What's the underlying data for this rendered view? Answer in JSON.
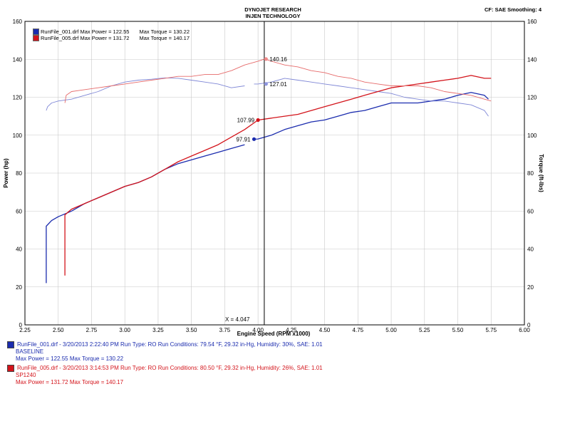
{
  "header": {
    "title_line1": "DYNOJET RESEARCH",
    "title_line2": "INJEN TECHNOLOGY",
    "cf_label": "CF: SAE  Smoothing: 4"
  },
  "legend": [
    {
      "file": "RunFile_001.drf",
      "max_power": "Max Power = 122.55",
      "max_torque": "Max Torque = 130.22",
      "color": "#1b2cae"
    },
    {
      "file": "RunFile_005.drf",
      "max_power": "Max Power = 131.72",
      "max_torque": "Max Torque = 140.17",
      "color": "#d3141b"
    }
  ],
  "cursor_label": "X = 4.047",
  "run_info": [
    {
      "line1": "RunFile_001.drf - 3/20/2013 2:22:40 PM  Run Type: RO  Run Conditions: 79.54 °F, 29.32 in-Hg,  Humidity: 30%, SAE: 1.01",
      "line2": "BASELINE",
      "line3": "Max Power = 122.55  Max Torque = 130.22",
      "color": "#1b2cae"
    },
    {
      "line1": "RunFile_005.drf - 3/20/2013 3:14:53 PM  Run Type: RO  Run Conditions: 80.50 °F, 29.32 in-Hg,  Humidity: 26%, SAE: 1.01",
      "line2": "SP1240",
      "line3": "Max Power = 131.72  Max Torque = 140.17",
      "color": "#d3141b"
    }
  ],
  "chart_data": {
    "type": "line",
    "xlabel": "Engine Speed (RPM x1000)",
    "ylabel": "Power (hp)",
    "y2label": "Torque (ft-lbs)",
    "xlim": [
      2.25,
      6.0
    ],
    "ylim": [
      0,
      160
    ],
    "y2lim": [
      0,
      160
    ],
    "xticks": [
      "2.25",
      "2.50",
      "2.75",
      "3.00",
      "3.25",
      "3.50",
      "3.75",
      "4.00",
      "4.25",
      "4.50",
      "4.75",
      "5.00",
      "5.25",
      "5.50",
      "5.75",
      "6.00"
    ],
    "yticks": [
      "0",
      "20",
      "40",
      "60",
      "80",
      "100",
      "120",
      "140",
      "160"
    ],
    "grid": true,
    "cursor_x": 4.047,
    "series": [
      {
        "name": "RunFile_001.drf Power",
        "axis": "left",
        "color": "#1b2cae",
        "width": 1.3,
        "points": [
          [
            2.41,
            22
          ],
          [
            2.41,
            52
          ],
          [
            2.45,
            55
          ],
          [
            2.5,
            57
          ],
          [
            2.6,
            60
          ],
          [
            2.7,
            64
          ],
          [
            2.8,
            67
          ],
          [
            2.9,
            70
          ],
          [
            3.0,
            73
          ],
          [
            3.1,
            75
          ],
          [
            3.2,
            78
          ],
          [
            3.3,
            82
          ],
          [
            3.4,
            85
          ],
          [
            3.5,
            87
          ],
          [
            3.6,
            89
          ],
          [
            3.7,
            91
          ],
          [
            3.8,
            93
          ],
          [
            3.9,
            95
          ]
        ]
      },
      {
        "name": "RunFile_001.drf Power",
        "axis": "left",
        "color": "#1b2cae",
        "width": 1.3,
        "points": [
          [
            3.97,
            97.91
          ],
          [
            4.0,
            98
          ],
          [
            4.1,
            100
          ],
          [
            4.2,
            103
          ],
          [
            4.3,
            105
          ],
          [
            4.4,
            107
          ],
          [
            4.5,
            108
          ],
          [
            4.6,
            110
          ],
          [
            4.7,
            112
          ],
          [
            4.8,
            113
          ],
          [
            4.9,
            115
          ],
          [
            5.0,
            117
          ],
          [
            5.1,
            117
          ],
          [
            5.2,
            117
          ],
          [
            5.3,
            118
          ],
          [
            5.4,
            119
          ],
          [
            5.5,
            121
          ],
          [
            5.6,
            122.5
          ],
          [
            5.7,
            121
          ],
          [
            5.73,
            119
          ]
        ]
      },
      {
        "name": "RunFile_001.drf Torque",
        "axis": "right",
        "color": "#7f87d6",
        "width": 0.9,
        "points": [
          [
            2.41,
            113
          ],
          [
            2.42,
            115
          ],
          [
            2.45,
            117
          ],
          [
            2.5,
            118
          ],
          [
            2.6,
            119
          ],
          [
            2.7,
            121
          ],
          [
            2.8,
            123
          ],
          [
            2.9,
            126
          ],
          [
            3.0,
            128
          ],
          [
            3.1,
            129
          ],
          [
            3.2,
            129.5
          ],
          [
            3.3,
            130.2
          ],
          [
            3.4,
            130
          ],
          [
            3.5,
            129
          ],
          [
            3.6,
            128
          ],
          [
            3.7,
            127
          ],
          [
            3.8,
            125
          ],
          [
            3.9,
            126
          ]
        ]
      },
      {
        "name": "RunFile_001.drf Torque",
        "axis": "right",
        "color": "#7f87d6",
        "width": 0.9,
        "points": [
          [
            3.97,
            127
          ],
          [
            4.0,
            127
          ],
          [
            4.1,
            128
          ],
          [
            4.2,
            130
          ],
          [
            4.3,
            129
          ],
          [
            4.4,
            128
          ],
          [
            4.5,
            127
          ],
          [
            4.6,
            126
          ],
          [
            4.7,
            125
          ],
          [
            4.8,
            124
          ],
          [
            4.9,
            123
          ],
          [
            5.0,
            122
          ],
          [
            5.1,
            120
          ],
          [
            5.2,
            119
          ],
          [
            5.3,
            118
          ],
          [
            5.4,
            118
          ],
          [
            5.5,
            117
          ],
          [
            5.6,
            116
          ],
          [
            5.7,
            113
          ],
          [
            5.73,
            110
          ]
        ]
      },
      {
        "name": "RunFile_005.drf Power",
        "axis": "left",
        "color": "#d3141b",
        "width": 1.3,
        "points": [
          [
            2.55,
            26
          ],
          [
            2.55,
            58
          ],
          [
            2.6,
            61
          ],
          [
            2.7,
            64
          ],
          [
            2.8,
            67
          ],
          [
            2.9,
            70
          ],
          [
            3.0,
            73
          ],
          [
            3.1,
            75
          ],
          [
            3.2,
            78
          ],
          [
            3.3,
            82
          ],
          [
            3.4,
            86
          ],
          [
            3.5,
            89
          ],
          [
            3.6,
            92
          ],
          [
            3.7,
            95
          ],
          [
            3.8,
            99
          ],
          [
            3.9,
            103
          ],
          [
            4.0,
            107.99
          ],
          [
            4.1,
            109
          ],
          [
            4.2,
            110
          ],
          [
            4.3,
            111
          ],
          [
            4.4,
            113
          ],
          [
            4.5,
            115
          ],
          [
            4.6,
            117
          ],
          [
            4.7,
            119
          ],
          [
            4.8,
            121
          ],
          [
            4.9,
            123
          ],
          [
            5.0,
            125
          ],
          [
            5.1,
            126
          ],
          [
            5.2,
            127
          ],
          [
            5.3,
            128
          ],
          [
            5.4,
            129
          ],
          [
            5.5,
            130
          ],
          [
            5.6,
            131.5
          ],
          [
            5.7,
            130
          ],
          [
            5.75,
            130
          ]
        ]
      },
      {
        "name": "RunFile_005.drf Torque",
        "axis": "right",
        "color": "#e66a6a",
        "width": 0.9,
        "points": [
          [
            2.55,
            117
          ],
          [
            2.56,
            121
          ],
          [
            2.6,
            123
          ],
          [
            2.7,
            124
          ],
          [
            2.8,
            125
          ],
          [
            2.9,
            126
          ],
          [
            3.0,
            127
          ],
          [
            3.1,
            128
          ],
          [
            3.2,
            129
          ],
          [
            3.3,
            130
          ],
          [
            3.4,
            131
          ],
          [
            3.5,
            131
          ],
          [
            3.6,
            132
          ],
          [
            3.7,
            132
          ],
          [
            3.8,
            134
          ],
          [
            3.9,
            137
          ],
          [
            4.0,
            139
          ],
          [
            4.05,
            140.17
          ],
          [
            4.1,
            139
          ],
          [
            4.2,
            137
          ],
          [
            4.3,
            136
          ],
          [
            4.4,
            134
          ],
          [
            4.5,
            133
          ],
          [
            4.6,
            131
          ],
          [
            4.7,
            130
          ],
          [
            4.8,
            128
          ],
          [
            4.9,
            127
          ],
          [
            5.0,
            126
          ],
          [
            5.1,
            126
          ],
          [
            5.2,
            126
          ],
          [
            5.3,
            125
          ],
          [
            5.4,
            123
          ],
          [
            5.5,
            122
          ],
          [
            5.6,
            121
          ],
          [
            5.7,
            119
          ],
          [
            5.75,
            118
          ]
        ]
      }
    ],
    "markers": [
      {
        "x": 4.0,
        "y": 107.99,
        "label": "107.99",
        "color": "#d3141b",
        "side": "left"
      },
      {
        "x": 3.97,
        "y": 97.91,
        "label": "97.91",
        "color": "#1b2cae",
        "side": "left"
      },
      {
        "x": 4.06,
        "y": 140.16,
        "label": "140.16",
        "color": "#f08a8a",
        "side": "right"
      },
      {
        "x": 4.06,
        "y": 127.01,
        "label": "127.01",
        "color": "#8d95de",
        "side": "right"
      }
    ]
  }
}
